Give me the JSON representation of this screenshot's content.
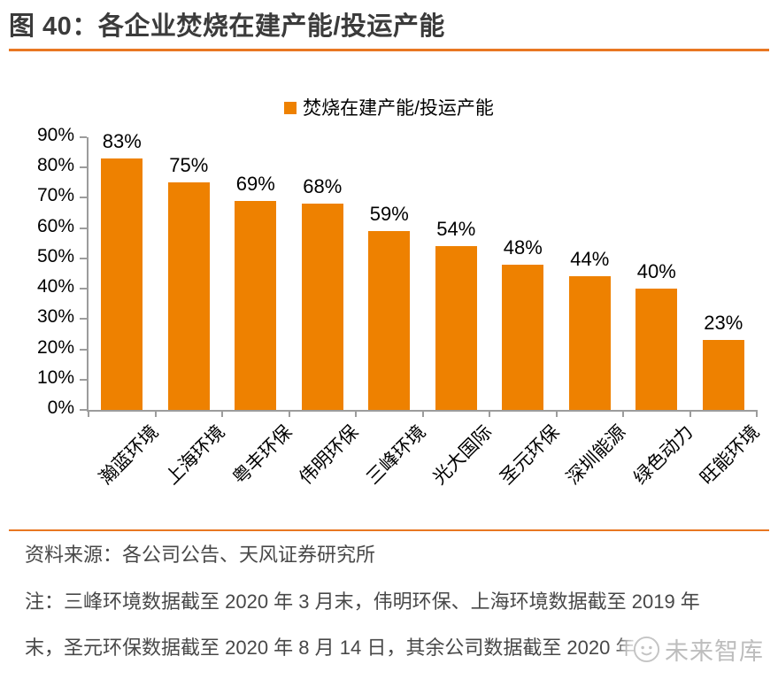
{
  "header": {
    "title": "图 40：各企业焚烧在建产能/投运产能"
  },
  "chart_data": {
    "type": "bar",
    "title": "图 40：各企业焚烧在建产能/投运产能",
    "legend": [
      "焚烧在建产能/投运产能"
    ],
    "legend_position": "top-center",
    "categories": [
      "瀚蓝环境",
      "上海环境",
      "粤丰环保",
      "伟明环保",
      "三峰环境",
      "光大国际",
      "圣元环保",
      "深圳能源",
      "绿色动力",
      "旺能环境"
    ],
    "values": [
      83,
      75,
      69,
      68,
      59,
      54,
      48,
      44,
      40,
      23
    ],
    "value_labels": [
      "83%",
      "75%",
      "69%",
      "68%",
      "59%",
      "54%",
      "48%",
      "44%",
      "40%",
      "23%"
    ],
    "xlabel": "",
    "ylabel": "",
    "ylim": [
      0,
      90
    ],
    "ytick_step": 10,
    "ytick_labels": [
      "0%",
      "10%",
      "20%",
      "30%",
      "40%",
      "50%",
      "60%",
      "70%",
      "80%",
      "90%"
    ],
    "grid": false,
    "bar_color": "#EE8100"
  },
  "footer": {
    "source": "资料来源：各公司公告、天风证券研究所",
    "note_line1": "注：三峰环境数据截至 2020 年 3 月末，伟明环保、上海环境数据截至 2019 年",
    "note_line2": "末，圣元环保数据截至 2020 年 8 月 14 日，其余公司数据截至 2020 年",
    "watermark": "未来智库"
  },
  "colors": {
    "accent_rule": "#E87722",
    "bar": "#EE8100",
    "axis": "#9C9C9C",
    "title_text": "#3B3B3B",
    "footer_text": "#484848",
    "watermark_text": "#BDBDBD"
  }
}
